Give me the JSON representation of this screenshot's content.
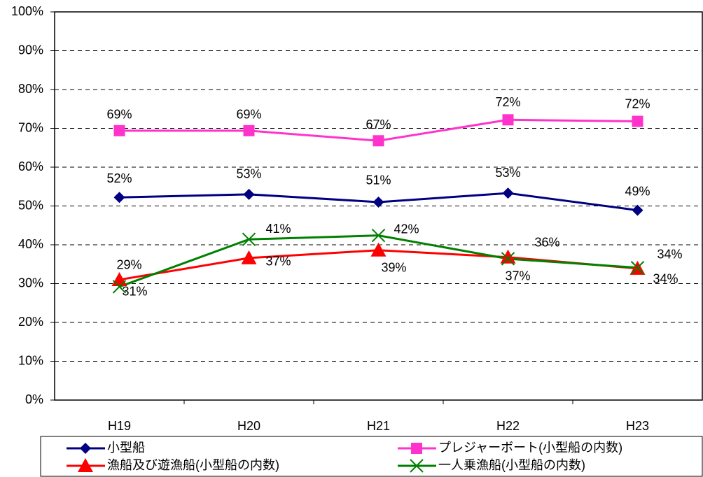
{
  "chart_data": {
    "type": "line",
    "categories": [
      "H19",
      "H20",
      "H21",
      "H22",
      "H23"
    ],
    "series": [
      {
        "name": "小型船",
        "color": "#000080",
        "marker": "diamond",
        "values": [
          52.2,
          53.0,
          51.0,
          53.3,
          48.9
        ],
        "value_labels": [
          "52%",
          "53%",
          "51%",
          "53%",
          "49%"
        ]
      },
      {
        "name": "プレジャーボート(小型船の内数)",
        "color": "#ff33cc",
        "marker": "square",
        "values": [
          69.4,
          69.4,
          66.8,
          72.2,
          71.8
        ],
        "value_labels": [
          "69%",
          "69%",
          "67%",
          "72%",
          "72%"
        ]
      },
      {
        "name": "漁船及び遊漁船(小型船の内数)",
        "color": "#ff0000",
        "marker": "triangle",
        "values": [
          31.0,
          36.6,
          38.6,
          36.8,
          33.9
        ],
        "value_labels": [
          "31%",
          "37%",
          "39%",
          "37%",
          "34%"
        ]
      },
      {
        "name": "一人乗漁船(小型船の内数)",
        "color": "#008000",
        "marker": "x",
        "values": [
          29.2,
          41.4,
          42.4,
          36.4,
          34.1
        ],
        "value_labels": [
          "29%",
          "41%",
          "42%",
          "36%",
          "34%"
        ]
      }
    ],
    "ylim": [
      0,
      100
    ],
    "yticks": [
      {
        "value": 0,
        "label": "0%"
      },
      {
        "value": 10,
        "label": "10%"
      },
      {
        "value": 20,
        "label": "20%"
      },
      {
        "value": 30,
        "label": "30%"
      },
      {
        "value": 40,
        "label": "40%"
      },
      {
        "value": 50,
        "label": "50%"
      },
      {
        "value": 60,
        "label": "60%"
      },
      {
        "value": 70,
        "label": "70%"
      },
      {
        "value": 80,
        "label": "80%"
      },
      {
        "value": 90,
        "label": "90%"
      },
      {
        "value": 100,
        "label": "100%"
      }
    ],
    "grid": true
  }
}
